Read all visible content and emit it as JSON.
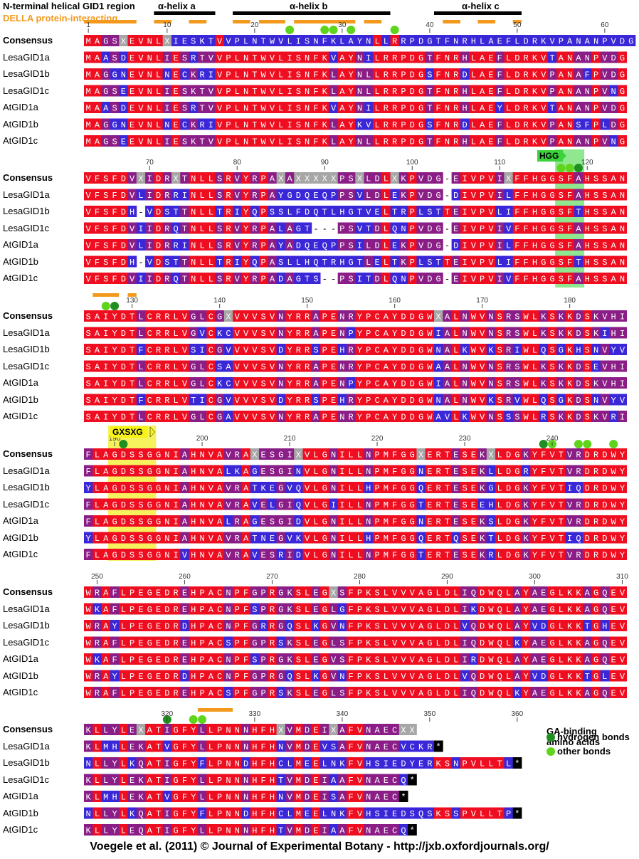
{
  "header": {
    "region_title": "N-terminal helical GID1 region",
    "della_label": "DELLA protein-interacting",
    "helices": [
      "α-helix a",
      "α-helix b",
      "α-helix c"
    ]
  },
  "motifs": {
    "hgg": "HGG",
    "gxsxg": "GXSXG"
  },
  "legend": {
    "title_line1": "GA-binding",
    "title_line2": "amino acids",
    "hbond_label": "hydrogen bonds",
    "other_label": "other bonds"
  },
  "credit": "Voegele et al. (2011) © Journal of Experimental Botany - http://jxb.oxfordjournals.org/",
  "colors": {
    "red": "#ee0e20",
    "blue": "#3a27d8",
    "purple": "#8a1d86",
    "gray": "#a6a6a6",
    "stop": "#000000",
    "orange": "#f39a1e",
    "dark_green": "#1f8f1f",
    "light_green": "#5fd41c",
    "hgg_highlight": "#8fe88f",
    "gxsxg_highlight": "#f6f25e"
  },
  "sequence_names": [
    "Consensus",
    "LesaGID1a",
    "LesaGID1b",
    "LesaGID1c",
    "AtGID1a",
    "AtGID1b",
    "AtGID1c"
  ],
  "alignment_blocks": [
    {
      "ruler": [
        1,
        10,
        20,
        30,
        40,
        50,
        60
      ],
      "seqs": [
        "MAGSXEVNLXIESKTVVPLNTWVLISNFKLAYNLLRRPDGTFNRHLAEFLDRKVPANANPVDG",
        "MAASDEVNLIESRTVVPLNTWVLISNFKVAYNILRRPDGTFNRHLAEFLDRKVTANANPVDG",
        "MAGGNEVNLNECKRIVPLNTWVLISNFKLAYNLLRRPDGSFNRDLAEFLDRKVPANAFPVDG",
        "MAGSEEVNLIESKTVVPLNTWVLISNFKLAYNLLRRPDGTFNRHLAEFLDRKVPANANPVNG",
        "MAASDEVNLIESRTVVPLNTWVLISNFKVAYNILRRPDGTFNRHLAEYLDRKVTANANPVDG",
        "MAGGNEVNLNECKRIVPLNTWVLISNFKLAYKVLRRPDGSFNRDLAEFLDRKVPANSFPLDG",
        "MAGSEEVNLIESKTVVPLNTWVLISNFKLAYNLLRRPDGTFNRHLAEFLDRKVPANANPVNG"
      ]
    },
    {
      "ruler": [
        70,
        80,
        90,
        100,
        110,
        120
      ],
      "seqs": [
        "VFSFDVXIDRXTNLLSRVYRPAXAXXXXXPSXLDLXKPVDG-EIVPVIXFFHGGSFAHSSAN",
        "VFSFDVLIDRRINLLSRVYRPAYGDQEQPPSVLDLEKPVDG-DIVPVILFFHGGSFAHSSAN",
        "VFSFDH-VDSTTNLLTRIYQPSSLFDQTLHGTVELTRPLSTTEIVPVLIFFHGGSFTHSSAN",
        "VFSFDVIIDRQTNLLSRVYRPALAGT---PSVTDLQNPVDG-EIVPVIVFFHGGSFAHSSAN",
        "VFSFDVLIDRRINLLSRVYRPAYADQEQPPSILDLEKPVDG-DIVPVILFFHGGSFAHSSAN",
        "VFSFDH-VDSTTNLLTRIYQPASLLHQTRHGTLELTKPLSTTEIVPVLIFFHGGSFTHSSAN",
        "VFSFDVIIDRQTNLLSRVYRPADAGTS--PSITDLQNPVDG-EIVPVIVFFHGGSFAHSSAN"
      ]
    },
    {
      "ruler": [
        130,
        140,
        150,
        160,
        170,
        180
      ],
      "seqs": [
        "SAIYDTLCRRLVGLCGXVVVSVNYRRAPENRYPCAYDDGWXALNWVNSRSWLKSKKDSKVHI",
        "SAIYDTLCRRLVGVCKCVVVSVNYRRAPENPYPCAYDDGWIALNWVNSRSWLKSKKDSKIHI",
        "SAIYDTFCRRLVSICGVVVVSVDYRRSPEHRYPCAYDDGWNALKWVKSRIWLQSGKHSNVYV",
        "SAIYDTLCRRLVGLCSAVVVSVNYRRAPENRYPCAYDDGWAALNWVNSRSWLKSKKDSEVHI",
        "SAIYDTLCRRLVGLCKCVVVSVNYRRAPENPYPCAYDDGWIALNWVNSRSWLKSKKDSKVHI",
        "SAIYDTFCRRLVTICGVVVVSVDYRRSPEHRYPCAYDDGWNALNWVKSRVWLQSGKDSNVYV",
        "SAIYDTLCRRLVGLCGAVVVSVNYRRAPENRYPCAYDDGWAVLKWVNSSSWLRSKKDSKVRI"
      ]
    },
    {
      "ruler": [
        190,
        200,
        210,
        220,
        230,
        240
      ],
      "seqs": [
        "FLAGDSSGGNIAHNVAVRAXESGIXVLGNILLNPMFGGXERTESEKXLDGKYFVTVRDRDWY",
        "FLAGDSSGGNIAHNVALKAGESGINVLGNILLNPMFGGNERTESEKLLDGRYFVTVRDRDWY",
        "YLAGDSSGGNIAHNVAVRATKEGVQVLGNILLHPMFGGQERTESEKGLDGKYFVTIQDRDWY",
        "FLAGDSSGGNIAHNVAVRAVELGIQVLGIILLNPMFGGTERTESEEHLDGKYFVTVRDRDWY",
        "FLAGDSSGGNIAHNVALRAGESGIDVLGNILLNPMFGGNERTESEKSLDGKYFVTVRDRDWY",
        "YLAGDSSGGNIAHNVAVRATNEGVKVLGNILLHPMFGGQERTQSEKTLDGKYFVTIQDRDWY",
        "FLAGDSSGGNIVHNVAVRAVESRIDVLGNILLNPMFGGTERTESEKRLDGKYFVTVRDRDWY"
      ]
    },
    {
      "ruler": [
        250,
        260,
        270,
        280,
        290,
        300,
        310
      ],
      "seqs": [
        "WRAFLPEGEDREHPACNPFGPRGKSLEGXSFPKSLVVVAGLDLIQDWQLAYAEGLKKAGQEV",
        "WKAFLPEGEDREHPACNPFSPRGKSLEGLGFPKSLVVVAGLDLIKDWQLAYAEGLKKAGQEV",
        "WRAYLPEGEDRDHPACNPFGRRGQSLKGVNFPKSLVVVAGLDLVQDWQLAYVDGLKKTGHEV",
        "WRAFLPEGEDREHPACSPFGPRSKSLEGLSFPKSLVVVAGLDLIQDWQLKYAEGLKKAGQEV",
        "WKAFLPEGEDREHPACNPFSPRGKSLEGVSFPKSLVVVAGLDLIRDWQLAYAEGLKKAGQEV",
        "WRAYLPEGEDRDHPACNPFGPRGQSLKGVNFPKSLVVVAGLDLVQDWQLAYVDGLKKTGLEV",
        "WRAFLPEGEDREHPACSPFGPRSKSLEGLSFPKSLVVVAGLDLIQDWQLKYAEGLKKAGQEV"
      ]
    },
    {
      "ruler": [
        320,
        330,
        340,
        350,
        360
      ],
      "seqs": [
        "KLLYLEXATIGFYLLPNNNHFHXVMDEIXAFVNAECXX",
        "KLMHLEKATVGFYLLPNNNHFHNVMDEVSAFVNAECVCKR*",
        "NLLYLKQATIGFYFLPNNDHFHCLMEELNKFVHSIEDYERKSNPVLLTL*",
        "KLLYLEKATIGFYLLPNNNHFHTVMDEIAAFVNAECQ*",
        "KLMHLEKATVGFYLLPNNNHFHNVMDEISAFVNAEC*",
        "NLLYLKQATIGFYFLPNNDHFHCLMEELNKFVHSIEDSQSKSSPVLLTP*",
        "KLLYLEQATIGFYLLPNNNHFHTVMDEIAAFVNAECQ*"
      ]
    }
  ]
}
